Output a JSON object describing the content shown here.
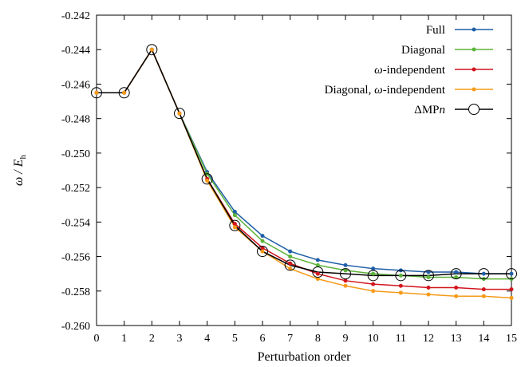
{
  "chart_data": {
    "type": "line",
    "xlabel": "Perturbation order",
    "ylabel": {
      "prefix": "ω / ",
      "main": "E",
      "sub": "h"
    },
    "xlim": [
      0,
      15
    ],
    "ylim": [
      -0.26,
      -0.242
    ],
    "xticks": [
      0,
      1,
      2,
      3,
      4,
      5,
      6,
      7,
      8,
      9,
      10,
      11,
      12,
      13,
      14,
      15
    ],
    "yticks": [
      -0.26,
      -0.258,
      -0.256,
      -0.254,
      -0.252,
      -0.25,
      -0.248,
      -0.246,
      -0.244,
      -0.242
    ],
    "ytick_labels": [
      "-0.260",
      "-0.258",
      "-0.256",
      "-0.254",
      "-0.252",
      "-0.250",
      "-0.248",
      "-0.246",
      "-0.244",
      "-0.242"
    ],
    "grid": false,
    "legend_position": "top-right",
    "x": [
      0,
      1,
      2,
      3,
      4,
      5,
      6,
      7,
      8,
      9,
      10,
      11,
      12,
      13,
      14,
      15
    ],
    "series": [
      {
        "name": "Full",
        "color": "#1f5fa8",
        "marker": "dot",
        "values": [
          -0.2465,
          -0.2465,
          -0.244,
          -0.2477,
          -0.2511,
          -0.2534,
          -0.2548,
          -0.2557,
          -0.2562,
          -0.2565,
          -0.2567,
          -0.2568,
          -0.2569,
          -0.2569,
          -0.257,
          -0.257
        ]
      },
      {
        "name": "Diagonal",
        "color": "#5db33a",
        "marker": "dot",
        "values": [
          -0.2465,
          -0.2465,
          -0.244,
          -0.2477,
          -0.2512,
          -0.2536,
          -0.2551,
          -0.256,
          -0.2565,
          -0.2568,
          -0.257,
          -0.2571,
          -0.2572,
          -0.2572,
          -0.2573,
          -0.2573
        ]
      },
      {
        "name": "ω-independent",
        "color": "#d2141e",
        "marker": "dot",
        "values": [
          -0.2465,
          -0.2465,
          -0.244,
          -0.2477,
          -0.2515,
          -0.2541,
          -0.2555,
          -0.2564,
          -0.257,
          -0.2574,
          -0.2576,
          -0.2577,
          -0.2578,
          -0.2578,
          -0.2579,
          -0.2579
        ]
      },
      {
        "name": "Diagonal, ω-independent",
        "color": "#f59a18",
        "marker": "dot",
        "values": [
          -0.2465,
          -0.2465,
          -0.244,
          -0.2477,
          -0.2516,
          -0.2543,
          -0.2557,
          -0.2567,
          -0.2573,
          -0.2577,
          -0.258,
          -0.2581,
          -0.2582,
          -0.2583,
          -0.2583,
          -0.2584
        ]
      },
      {
        "name": "ΔMPn",
        "label_prefix": "ΔMP",
        "label_italic": "n",
        "color": "#000000",
        "marker": "circle",
        "values": [
          -0.2465,
          -0.2465,
          -0.244,
          -0.2477,
          -0.2515,
          -0.2542,
          -0.2557,
          -0.2565,
          -0.2569,
          -0.257,
          -0.2571,
          -0.2571,
          -0.2571,
          -0.257,
          -0.257,
          -0.257
        ]
      }
    ]
  }
}
